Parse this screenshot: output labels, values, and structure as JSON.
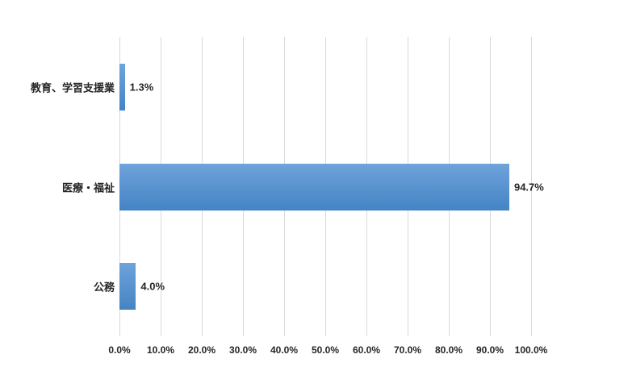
{
  "chart_data": {
    "type": "bar",
    "orientation": "horizontal",
    "title": "",
    "categories": [
      "教育、学習支援業",
      "医療・福祉",
      "公務"
    ],
    "values": [
      1.3,
      94.7,
      4.0
    ],
    "value_labels": [
      "1.3%",
      "94.7%",
      "4.0%"
    ],
    "x_ticks": [
      "0.0%",
      "10.0%",
      "20.0%",
      "30.0%",
      "40.0%",
      "50.0%",
      "60.0%",
      "70.0%",
      "80.0%",
      "90.0%",
      "100.0%"
    ],
    "xlim": [
      0,
      100
    ],
    "grid": true,
    "legend": false,
    "colors": {
      "bar_top": "#6fa3db",
      "bar_bottom": "#4484c4",
      "gridline": "#d9d9d9",
      "text": "#262626",
      "background": "#ffffff"
    }
  }
}
